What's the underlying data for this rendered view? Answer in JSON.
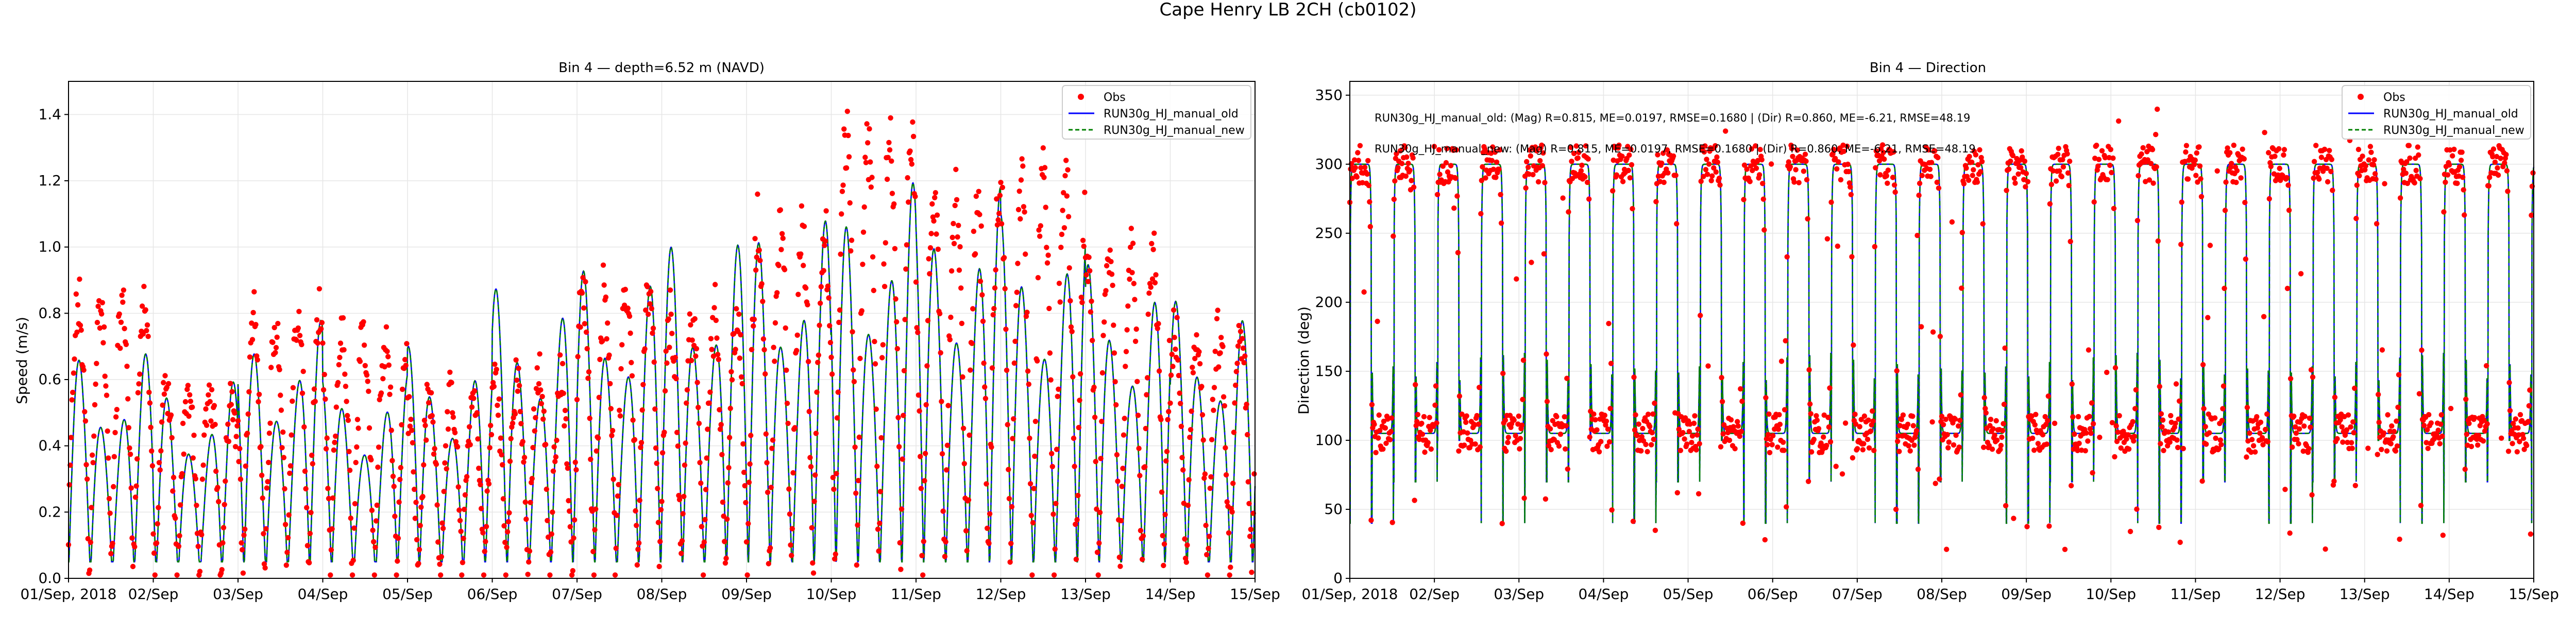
{
  "figure": {
    "suptitle": "Cape Henry LB 2CH (cb0102)"
  },
  "colors": {
    "obs": "#ff0000",
    "old": "#0000ff",
    "new": "#008000",
    "grid": "#e6e6e6",
    "axis": "#000000"
  },
  "chart_data": [
    {
      "type": "line",
      "title": "Bin 4 — depth=6.52 m (NAVD)",
      "xlabel": "",
      "ylabel": "Speed (m/s)",
      "xlim": [
        "2018-09-01",
        "2018-09-15"
      ],
      "ylim": [
        0,
        1.5
      ],
      "yticks": [
        "0.0",
        "0.2",
        "0.4",
        "0.6",
        "0.8",
        "1.0",
        "1.2",
        "1.4"
      ],
      "xticks": [
        "01/Sep, 2018",
        "02/Sep",
        "03/Sep",
        "04/Sep",
        "05/Sep",
        "06/Sep",
        "07/Sep",
        "08/Sep",
        "09/Sep",
        "10/Sep",
        "11/Sep",
        "12/Sep",
        "13/Sep",
        "14/Sep",
        "15/Sep"
      ],
      "grid": true,
      "legend": {
        "position": "top-right",
        "entries": [
          "Obs",
          "RUN30g_HJ_manual_old",
          "RUN30g_HJ_manual_new"
        ]
      },
      "series_obs_name": "Obs",
      "daily_peak_speed_obs": [
        0.88,
        0.6,
        0.82,
        0.78,
        0.58,
        0.65,
        0.93,
        0.85,
        1.12,
        1.45,
        1.22,
        1.28,
        1.03,
        0.78,
        0.5
      ],
      "daily_peak_speed_model": [
        0.7,
        0.6,
        0.78,
        0.62,
        0.7,
        0.88,
        0.95,
        1.05,
        1.1,
        1.2,
        1.18,
        1.1,
        0.95,
        0.85,
        0.75
      ],
      "min_speed": 0.05,
      "annotations": []
    },
    {
      "type": "line",
      "title": "Bin 4 — Direction",
      "xlabel": "",
      "ylabel": "Direction (deg)",
      "xlim": [
        "2018-09-01",
        "2018-09-15"
      ],
      "ylim": [
        0,
        360
      ],
      "yticks": [
        "0",
        "50",
        "100",
        "150",
        "200",
        "250",
        "300",
        "350"
      ],
      "xticks": [
        "01/Sep, 2018",
        "02/Sep",
        "03/Sep",
        "04/Sep",
        "05/Sep",
        "06/Sep",
        "07/Sep",
        "08/Sep",
        "09/Sep",
        "10/Sep",
        "11/Sep",
        "12/Sep",
        "13/Sep",
        "14/Sep",
        "15/Sep"
      ],
      "grid": true,
      "legend": {
        "position": "top-right",
        "entries": [
          "Obs",
          "RUN30g_HJ_manual_old",
          "RUN30g_HJ_manual_new"
        ]
      },
      "flood_direction_deg": 300,
      "ebb_direction_deg": 105,
      "annotations": [
        "RUN30g_HJ_manual_old: (Mag) R=0.815, ME=0.0197, RMSE=0.1680 | (Dir) R=0.860, ME=-6.21, RMSE=48.19",
        "RUN30g_HJ_manual_new: (Mag) R=0.815, ME=0.0197, RMSE=0.1680 | (Dir) R=0.860, ME=-6.21, RMSE=48.19"
      ]
    }
  ]
}
